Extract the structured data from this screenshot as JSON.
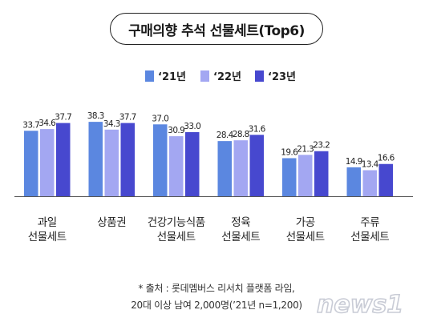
{
  "chart_data": {
    "type": "bar",
    "title": "구매의향 추석 선물세트(Top6)",
    "categories": [
      [
        "과일",
        "선물세트"
      ],
      [
        "상품권"
      ],
      [
        "건강기능식품",
        "선물세트"
      ],
      [
        "정육",
        "선물세트"
      ],
      [
        "가공",
        "선물세트"
      ],
      [
        "주류",
        "선물세트"
      ]
    ],
    "series": [
      {
        "name": "‘21년",
        "color": "#5b87e0",
        "values": [
          33.7,
          38.3,
          37.0,
          28.4,
          19.6,
          14.9
        ]
      },
      {
        "name": "‘22년",
        "color": "#a3a7f2",
        "values": [
          34.6,
          34.3,
          30.9,
          28.8,
          21.3,
          13.4
        ]
      },
      {
        "name": "‘23년",
        "color": "#4748cf",
        "values": [
          37.7,
          37.7,
          33.0,
          31.6,
          23.2,
          16.6
        ]
      }
    ],
    "value_labels": [
      [
        "33.7",
        "38.3",
        "37.0",
        "28.4",
        "19.6",
        "14.9"
      ],
      [
        "34.6",
        "34.3",
        "30.9",
        "28.8",
        "21.3",
        "13.4"
      ],
      [
        "37.7",
        "37.7",
        "33.0",
        "31.6",
        "23.2",
        "16.6"
      ]
    ],
    "ylim": [
      0,
      40
    ],
    "legend": "top-center",
    "grid": false
  },
  "footnote": {
    "line1": "* 출처 : 롯데멤버스 리서치 플랫폼 라임,",
    "line2": "20대 이상 남여 2,000명(’21년 n=1,200)"
  },
  "watermark": {
    "text": "news1",
    "color": "#c9ccd6"
  }
}
